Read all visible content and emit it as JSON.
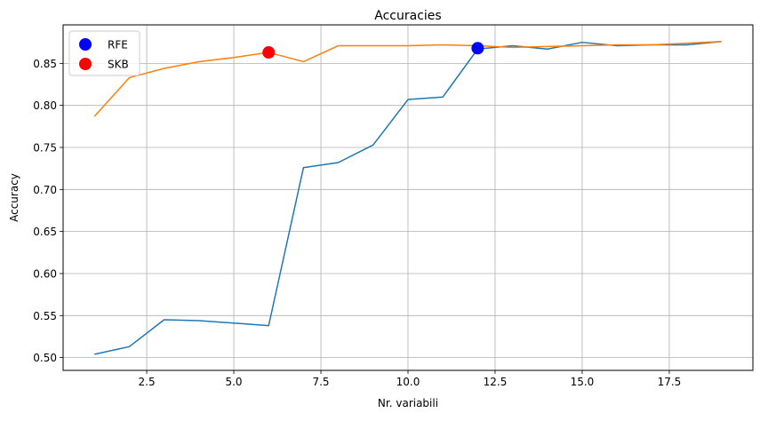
{
  "chart_data": {
    "type": "line",
    "title": "Accuracies",
    "xlabel": "Nr. variabili",
    "ylabel": "Accuracy",
    "xlim": [
      0.1,
      19.9
    ],
    "ylim": [
      0.4848,
      0.8958
    ],
    "grid": true,
    "legend_position": "top-left",
    "x_ticks": [
      2.5,
      5.0,
      7.5,
      10.0,
      12.5,
      15.0,
      17.5
    ],
    "x_tick_labels": [
      "2.5",
      "5.0",
      "7.5",
      "10.0",
      "12.5",
      "15.0",
      "17.5"
    ],
    "y_ticks": [
      0.5,
      0.55,
      0.6,
      0.65,
      0.7,
      0.75,
      0.8,
      0.85
    ],
    "y_tick_labels": [
      "0.50",
      "0.55",
      "0.60",
      "0.65",
      "0.70",
      "0.75",
      "0.80",
      "0.85"
    ],
    "series": [
      {
        "color": "#1f77b4",
        "x": [
          1,
          2,
          3,
          4,
          5,
          6,
          7,
          8,
          9,
          10,
          11,
          12,
          13,
          14,
          15,
          16,
          17,
          18,
          19
        ],
        "y": [
          0.504,
          0.513,
          0.545,
          0.544,
          0.541,
          0.538,
          0.726,
          0.732,
          0.753,
          0.807,
          0.81,
          0.867,
          0.871,
          0.867,
          0.875,
          0.871,
          0.872,
          0.872,
          0.876
        ]
      },
      {
        "color": "#ff7f0e",
        "x": [
          1,
          2,
          3,
          4,
          5,
          6,
          7,
          8,
          9,
          10,
          11,
          12,
          13,
          14,
          15,
          16,
          17,
          18,
          19
        ],
        "y": [
          0.787,
          0.833,
          0.844,
          0.852,
          0.857,
          0.863,
          0.852,
          0.871,
          0.871,
          0.871,
          0.872,
          0.871,
          0.869,
          0.87,
          0.871,
          0.872,
          0.872,
          0.874,
          0.876
        ]
      }
    ],
    "markers": [
      {
        "name": "RFE",
        "color": "#0000ff",
        "x": 12,
        "y": 0.868
      },
      {
        "name": "SKB",
        "color": "#ff0000",
        "x": 6,
        "y": 0.863
      }
    ]
  }
}
